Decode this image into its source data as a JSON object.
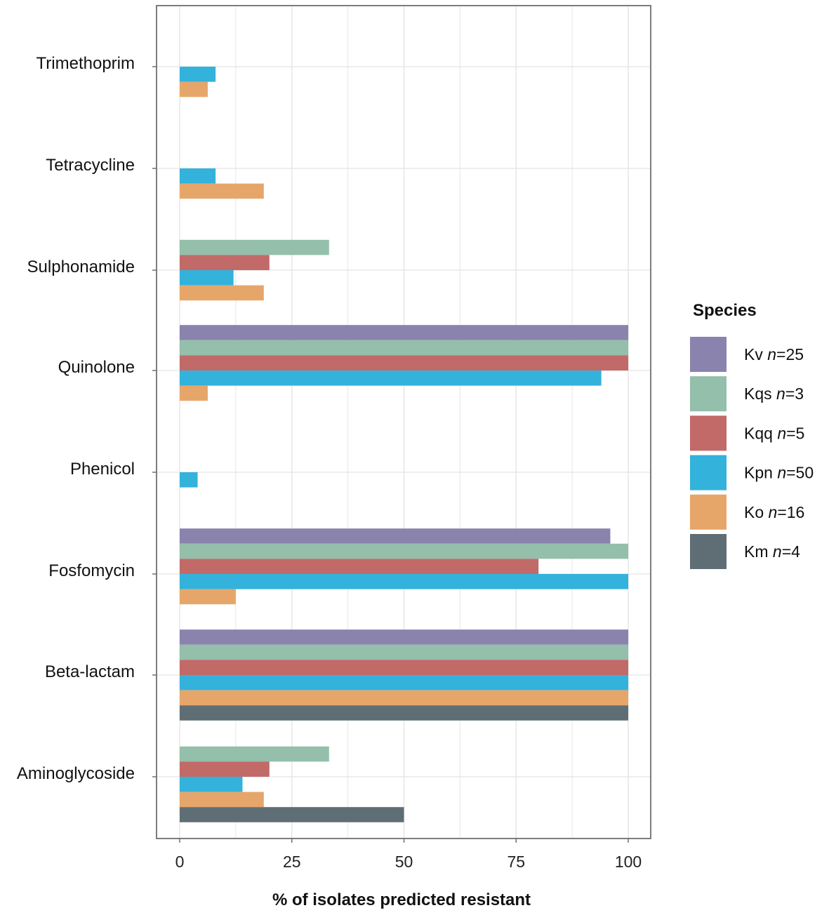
{
  "chart_data": {
    "type": "bar",
    "orientation": "horizontal",
    "title": "",
    "xlabel": "% of isolates predicted resistant",
    "ylabel": "",
    "xlim": [
      0,
      100
    ],
    "xticks": [
      0,
      25,
      50,
      75,
      100
    ],
    "xtick_labels": [
      "0",
      "25",
      "50",
      "75",
      "100"
    ],
    "grid": true,
    "legend_position": "right",
    "legend_title": "Species",
    "categories": [
      "Trimethoprim",
      "Tetracycline",
      "Sulphonamide",
      "Quinolone",
      "Phenicol",
      "Fosfomycin",
      "Beta-lactam",
      "Aminoglycoside"
    ],
    "series": [
      {
        "name": "Kv",
        "n_label": "n",
        "n_value": "=25",
        "color": "#8a83ad",
        "values": [
          0,
          0,
          0,
          100,
          0,
          96,
          100,
          0
        ]
      },
      {
        "name": "Kqs",
        "n_label": "n",
        "n_value": "=3",
        "color": "#93bfab",
        "values": [
          0,
          0,
          33.3,
          100,
          0,
          100,
          100,
          33.3
        ]
      },
      {
        "name": "Kqq",
        "n_label": "n",
        "n_value": "=5",
        "color": "#c26a68",
        "values": [
          0,
          0,
          20,
          100,
          0,
          80,
          100,
          20
        ]
      },
      {
        "name": "Kpn",
        "n_label": "n",
        "n_value": "=50",
        "color": "#33b2dc",
        "values": [
          8,
          8,
          12,
          94,
          4,
          100,
          100,
          14
        ]
      },
      {
        "name": "Ko",
        "n_label": "n",
        "n_value": "=16",
        "color": "#e6a66a",
        "values": [
          6.25,
          18.75,
          18.75,
          6.25,
          0,
          12.5,
          100,
          18.75
        ]
      },
      {
        "name": "Km",
        "n_label": "n",
        "n_value": "=4",
        "color": "#5f6e75",
        "values": [
          0,
          0,
          0,
          0,
          0,
          0,
          100,
          50
        ]
      }
    ]
  }
}
